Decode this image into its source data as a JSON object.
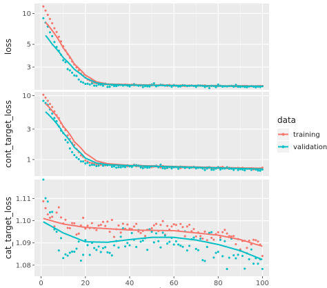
{
  "chart_data": {
    "type": "scatter",
    "xlabel": "epoch",
    "x_ticks": [
      "0",
      "20",
      "40",
      "60",
      "80",
      "100"
    ],
    "xlim": [
      -3,
      103
    ],
    "grid": true,
    "legend": {
      "title": "data",
      "placement": "right",
      "entries": [
        "training",
        "validation"
      ],
      "colors": {
        "training": "#f8766d",
        "validation": "#00bfc4"
      }
    },
    "smoothing": "loess trend line per series",
    "panels": [
      {
        "ylabel": "loss",
        "y_scale": "log",
        "ylim": [
          1.8,
          12.5
        ],
        "y_ticks": [
          {
            "value": 3,
            "label": "3"
          },
          {
            "value": 5,
            "label": "5"
          },
          {
            "value": 10,
            "label": "10"
          }
        ],
        "series": [
          {
            "name": "training",
            "anchors": [
              [
                1,
                11.6
              ],
              [
                2,
                10.6
              ],
              [
                4,
                8.8
              ],
              [
                6,
                7.2
              ],
              [
                8,
                5.9
              ],
              [
                10,
                4.8
              ],
              [
                12,
                4.0
              ],
              [
                14,
                3.4
              ],
              [
                16,
                2.95
              ],
              [
                18,
                2.6
              ],
              [
                20,
                2.35
              ],
              [
                22,
                2.2
              ],
              [
                25,
                2.07
              ],
              [
                30,
                2.03
              ],
              [
                40,
                2.0
              ],
              [
                60,
                1.98
              ],
              [
                80,
                1.96
              ],
              [
                100,
                1.95
              ]
            ],
            "noise": 0.01
          },
          {
            "name": "validation",
            "anchors": [
              [
                1,
                8.8
              ],
              [
                2,
                8.0
              ],
              [
                4,
                6.5
              ],
              [
                6,
                5.3
              ],
              [
                8,
                4.3
              ],
              [
                10,
                3.5
              ],
              [
                12,
                2.95
              ],
              [
                14,
                2.6
              ],
              [
                16,
                2.35
              ],
              [
                18,
                2.2
              ],
              [
                20,
                2.1
              ],
              [
                22,
                2.05
              ],
              [
                25,
                2.02
              ],
              [
                30,
                2.0
              ],
              [
                40,
                1.99
              ],
              [
                60,
                1.97
              ],
              [
                80,
                1.95
              ],
              [
                100,
                1.94
              ]
            ],
            "noise": 0.03
          }
        ],
        "smooth": [
          {
            "name": "training",
            "anchors": [
              [
                2,
                8.2
              ],
              [
                5,
                6.8
              ],
              [
                10,
                4.6
              ],
              [
                15,
                3.2
              ],
              [
                20,
                2.5
              ],
              [
                25,
                2.15
              ],
              [
                30,
                2.05
              ],
              [
                40,
                2.02
              ],
              [
                60,
                1.99
              ],
              [
                80,
                1.97
              ],
              [
                100,
                1.96
              ]
            ]
          },
          {
            "name": "validation",
            "anchors": [
              [
                2,
                6.1
              ],
              [
                5,
                5.0
              ],
              [
                10,
                3.7
              ],
              [
                15,
                2.85
              ],
              [
                20,
                2.35
              ],
              [
                25,
                2.1
              ],
              [
                30,
                2.03
              ],
              [
                40,
                2.0
              ],
              [
                60,
                1.98
              ],
              [
                80,
                1.96
              ],
              [
                100,
                1.95
              ]
            ]
          }
        ]
      },
      {
        "ylabel": "cont_target_loss",
        "y_scale": "log",
        "ylim": [
          0.55,
          11.5
        ],
        "y_ticks": [
          {
            "value": 1,
            "label": "1"
          },
          {
            "value": 3,
            "label": "3"
          },
          {
            "value": 10,
            "label": "10"
          }
        ],
        "series": [
          {
            "name": "training",
            "anchors": [
              [
                1,
                10.3
              ],
              [
                2,
                9.2
              ],
              [
                4,
                7.4
              ],
              [
                6,
                5.8
              ],
              [
                8,
                4.4
              ],
              [
                10,
                3.3
              ],
              [
                12,
                2.45
              ],
              [
                14,
                1.85
              ],
              [
                16,
                1.45
              ],
              [
                18,
                1.15
              ],
              [
                20,
                0.98
              ],
              [
                22,
                0.9
              ],
              [
                25,
                0.85
              ],
              [
                30,
                0.82
              ],
              [
                40,
                0.79
              ],
              [
                60,
                0.76
              ],
              [
                80,
                0.74
              ],
              [
                100,
                0.72
              ]
            ],
            "noise": 0.03
          },
          {
            "name": "validation",
            "anchors": [
              [
                1,
                8.4
              ],
              [
                2,
                7.6
              ],
              [
                4,
                6.0
              ],
              [
                6,
                4.5
              ],
              [
                8,
                3.3
              ],
              [
                10,
                2.4
              ],
              [
                12,
                1.75
              ],
              [
                14,
                1.35
              ],
              [
                16,
                1.08
              ],
              [
                18,
                0.95
              ],
              [
                20,
                0.88
              ],
              [
                22,
                0.84
              ],
              [
                25,
                0.82
              ],
              [
                30,
                0.8
              ],
              [
                40,
                0.78
              ],
              [
                60,
                0.75
              ],
              [
                80,
                0.72
              ],
              [
                100,
                0.68
              ]
            ],
            "noise": 0.06
          }
        ],
        "smooth": [
          {
            "name": "training",
            "anchors": [
              [
                2,
                7.5
              ],
              [
                5,
                5.8
              ],
              [
                10,
                3.3
              ],
              [
                15,
                1.9
              ],
              [
                20,
                1.25
              ],
              [
                25,
                0.95
              ],
              [
                30,
                0.86
              ],
              [
                40,
                0.81
              ],
              [
                60,
                0.78
              ],
              [
                80,
                0.75
              ],
              [
                100,
                0.73
              ]
            ]
          },
          {
            "name": "validation",
            "anchors": [
              [
                2,
                5.6
              ],
              [
                5,
                4.4
              ],
              [
                10,
                2.6
              ],
              [
                15,
                1.55
              ],
              [
                20,
                1.05
              ],
              [
                25,
                0.88
              ],
              [
                30,
                0.83
              ],
              [
                40,
                0.8
              ],
              [
                60,
                0.77
              ],
              [
                80,
                0.74
              ],
              [
                100,
                0.71
              ]
            ]
          }
        ]
      },
      {
        "ylabel": "cat_target_loss",
        "y_scale": "linear",
        "ylim": [
          1.075,
          1.1185
        ],
        "y_ticks": [
          {
            "value": 1.08,
            "label": "1.08"
          },
          {
            "value": 1.09,
            "label": "1.09"
          },
          {
            "value": 1.1,
            "label": "1.10"
          },
          {
            "value": 1.11,
            "label": "1.11"
          }
        ],
        "series": [
          {
            "name": "training",
            "anchors": [
              [
                1,
                1.108
              ],
              [
                3,
                1.102
              ],
              [
                5,
                1.099
              ],
              [
                8,
                1.101
              ],
              [
                10,
                1.098
              ],
              [
                20,
                1.097
              ],
              [
                40,
                1.096
              ],
              [
                60,
                1.096
              ],
              [
                80,
                1.094
              ],
              [
                100,
                1.088
              ]
            ],
            "noise": 0.0035
          },
          {
            "name": "validation",
            "anchors": [
              [
                1,
                1.117
              ],
              [
                2,
                1.112
              ],
              [
                4,
                1.104
              ],
              [
                6,
                1.096
              ],
              [
                10,
                1.088
              ],
              [
                20,
                1.086
              ],
              [
                30,
                1.089
              ],
              [
                40,
                1.091
              ],
              [
                50,
                1.092
              ],
              [
                60,
                1.091
              ],
              [
                70,
                1.088
              ],
              [
                80,
                1.087
              ],
              [
                90,
                1.084
              ],
              [
                100,
                1.081
              ]
            ],
            "noise": 0.005
          }
        ],
        "smooth": [
          {
            "name": "training",
            "anchors": [
              [
                1,
                1.101
              ],
              [
                10,
                1.0985
              ],
              [
                20,
                1.097
              ],
              [
                40,
                1.0958
              ],
              [
                60,
                1.0955
              ],
              [
                80,
                1.0935
              ],
              [
                90,
                1.0915
              ],
              [
                100,
                1.0885
              ]
            ]
          },
          {
            "name": "validation",
            "anchors": [
              [
                1,
                1.0995
              ],
              [
                10,
                1.0945
              ],
              [
                20,
                1.0905
              ],
              [
                30,
                1.0903
              ],
              [
                40,
                1.0915
              ],
              [
                50,
                1.0925
              ],
              [
                60,
                1.0925
              ],
              [
                70,
                1.0913
              ],
              [
                80,
                1.0893
              ],
              [
                90,
                1.0865
              ],
              [
                100,
                1.0825
              ]
            ]
          }
        ]
      }
    ]
  }
}
